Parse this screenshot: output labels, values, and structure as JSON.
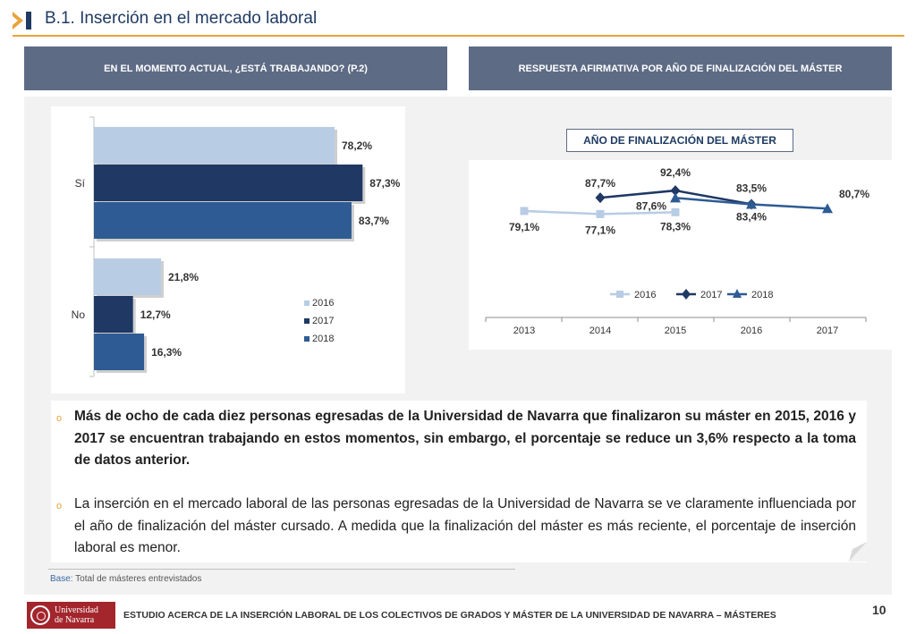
{
  "header": {
    "title": "B.1. Inserción en el mercado laboral"
  },
  "panels": {
    "left_title": "EN EL MOMENTO ACTUAL, ¿ESTÁ TRABAJANDO? (P.2)",
    "right_title": "RESPUESTA AFIRMATIVA POR AÑO DE FINALIZACIÓN DEL MÁSTER"
  },
  "colors": {
    "y2016": "#b8cce4",
    "y2017": "#1f3864",
    "y2018": "#2e5b93",
    "accent": "#e8a33b",
    "header_bar": "#5d6b85"
  },
  "chart_data": [
    {
      "type": "bar",
      "orientation": "horizontal",
      "categories": [
        "Sí",
        "No"
      ],
      "series": [
        {
          "name": "2016",
          "values": [
            78.2,
            21.8
          ],
          "labels": [
            "78,2%",
            "21,8%"
          ]
        },
        {
          "name": "2017",
          "values": [
            87.3,
            12.7
          ],
          "labels": [
            "87,3%",
            "12,7%"
          ]
        },
        {
          "name": "2018",
          "values": [
            83.7,
            16.3
          ],
          "labels": [
            "83,7%",
            "16,3%"
          ]
        }
      ],
      "xlim": [
        0,
        100
      ],
      "legend": [
        "2016",
        "2017",
        "2018"
      ],
      "legend_position": "right"
    },
    {
      "type": "line",
      "title": "AÑO DE FINALIZACIÓN DEL MÁSTER",
      "x": [
        "2013",
        "2014",
        "2015",
        "2016",
        "2017"
      ],
      "series": [
        {
          "name": "2016",
          "values": [
            79.1,
            77.1,
            78.3,
            null,
            null
          ],
          "labels": [
            "79,1%",
            "77,1%",
            "78,3%",
            "",
            ""
          ]
        },
        {
          "name": "2017",
          "values": [
            null,
            87.7,
            92.4,
            83.5,
            null
          ],
          "labels": [
            "",
            "87,7%",
            "92,4%",
            "83,5%",
            ""
          ]
        },
        {
          "name": "2018",
          "values": [
            null,
            null,
            87.6,
            83.4,
            80.7
          ],
          "labels": [
            "",
            "",
            "87,6%",
            "83,4%",
            "80,7%"
          ]
        }
      ],
      "legend": [
        "2016",
        "2017",
        "2018"
      ],
      "legend_position": "bottom"
    }
  ],
  "text": {
    "p1": "Más de ocho de cada diez personas egresadas de la Universidad de Navarra que finalizaron su máster en 2015, 2016 y 2017 se encuentran trabajando en estos momentos, sin embargo, el porcentaje se reduce un 3,6% respecto a la toma de datos anterior.",
    "p2": "La inserción en el mercado laboral de las personas egresadas de la Universidad de Navarra se ve claramente influenciada por el año de finalización del máster cursado. A medida que la finalización del máster es más reciente, el porcentaje de inserción laboral es menor."
  },
  "base": {
    "label": "Base:",
    "text": " Total de másteres entrevistados"
  },
  "footer": {
    "logo_line1": "Universidad",
    "logo_line2": "de Navarra",
    "text": "ESTUDIO ACERCA DE LA INSERCIÓN LABORAL DE LOS COLECTIVOS DE GRADOS Y MÁSTER DE LA UNIVERSIDAD DE NAVARRA – MÁSTERES",
    "page": "10"
  }
}
